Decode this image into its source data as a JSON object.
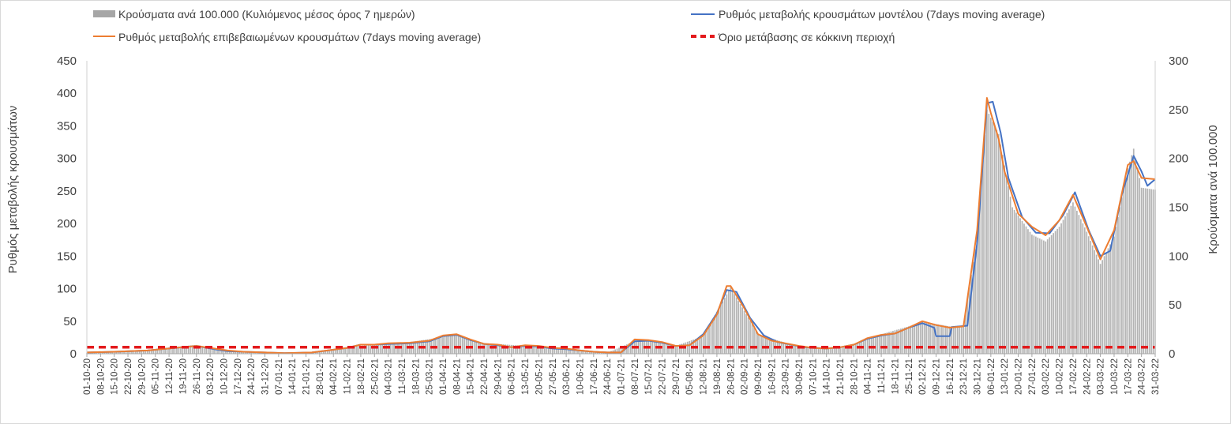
{
  "chart_data": {
    "type": "bar+line",
    "legend": {
      "placement": "top",
      "items": [
        {
          "key": "cases",
          "label": "Κρούσματα ανά 100.000 (Κυλιόμενος μέσος όρος 7 ημερών)",
          "color": "#a6a6a6",
          "style": "bar"
        },
        {
          "key": "model",
          "label": "Ρυθμός μεταβολής κρουσμάτων μοντέλου (7days moving average)",
          "color": "#4472c4",
          "style": "line"
        },
        {
          "key": "confirmed",
          "label": "Ρυθμός μεταβολής επιβεβαιωμένων κρουσμάτων (7days moving average)",
          "color": "#ed7d31",
          "style": "line"
        },
        {
          "key": "threshold",
          "label": "Όριο μετάβασης σε κόκκινη περιοχή",
          "color": "#e31a1c",
          "style": "dashed"
        }
      ]
    },
    "y_left": {
      "label": "Ρυθμός μεταβολής κρουσμάτων",
      "min": 0,
      "max": 450,
      "ticks": [
        "0",
        "50",
        "100",
        "150",
        "200",
        "250",
        "300",
        "350",
        "400",
        "450"
      ]
    },
    "y_right": {
      "label": "Κρούσματα ανά 100.000",
      "min": 0,
      "max": 300,
      "ticks": [
        "0",
        "50",
        "100",
        "150",
        "200",
        "250",
        "300"
      ]
    },
    "x_axis": {
      "start": "2020-10-01",
      "end": "2022-03-31",
      "tick_labels": [
        "01-10-20",
        "08-10-20",
        "15-10-20",
        "22-10-20",
        "29-10-20",
        "05-11-20",
        "12-11-20",
        "19-11-20",
        "26-11-20",
        "03-12-20",
        "10-12-20",
        "17-12-20",
        "24-12-20",
        "31-12-20",
        "07-01-21",
        "14-01-21",
        "21-01-21",
        "28-01-21",
        "04-02-21",
        "11-02-21",
        "18-02-21",
        "25-02-21",
        "04-03-21",
        "11-03-21",
        "18-03-21",
        "25-03-21",
        "01-04-21",
        "08-04-21",
        "15-04-21",
        "22-04-21",
        "29-04-21",
        "06-05-21",
        "13-05-21",
        "20-05-21",
        "27-05-21",
        "03-06-21",
        "10-06-21",
        "17-06-21",
        "24-06-21",
        "01-07-21",
        "08-07-21",
        "15-07-21",
        "22-07-21",
        "29-07-21",
        "05-08-21",
        "12-08-21",
        "19-08-21",
        "26-08-21",
        "02-09-21",
        "09-09-21",
        "16-09-21",
        "23-09-21",
        "30-09-21",
        "07-10-21",
        "14-10-21",
        "21-10-21",
        "28-10-21",
        "04-11-21",
        "11-11-21",
        "18-11-21",
        "25-11-21",
        "02-12-21",
        "09-12-21",
        "16-12-21",
        "23-12-21",
        "30-12-21",
        "06-01-22",
        "13-01-22",
        "20-01-22",
        "27-01-22",
        "03-02-22",
        "10-02-22",
        "17-02-22",
        "24-02-22",
        "03-03-22",
        "10-03-22",
        "17-03-22",
        "24-03-22",
        "31-03-22"
      ]
    },
    "threshold_value": 10,
    "series": {
      "confirmed": [
        [
          "2020-10-01",
          2
        ],
        [
          "2020-10-15",
          3
        ],
        [
          "2020-11-01",
          5
        ],
        [
          "2020-11-15",
          9
        ],
        [
          "2020-11-26",
          12
        ],
        [
          "2020-12-05",
          8
        ],
        [
          "2020-12-12",
          5
        ],
        [
          "2020-12-20",
          3
        ],
        [
          "2020-12-31",
          2
        ],
        [
          "2021-01-10",
          1
        ],
        [
          "2021-01-24",
          2
        ],
        [
          "2021-02-01",
          5
        ],
        [
          "2021-02-11",
          9
        ],
        [
          "2021-02-18",
          14
        ],
        [
          "2021-02-25",
          14
        ],
        [
          "2021-03-04",
          16
        ],
        [
          "2021-03-15",
          17
        ],
        [
          "2021-03-25",
          20
        ],
        [
          "2021-04-01",
          28
        ],
        [
          "2021-04-08",
          30
        ],
        [
          "2021-04-15",
          22
        ],
        [
          "2021-04-22",
          15
        ],
        [
          "2021-04-29",
          14
        ],
        [
          "2021-05-06",
          10
        ],
        [
          "2021-05-13",
          13
        ],
        [
          "2021-05-20",
          12
        ],
        [
          "2021-05-27",
          9
        ],
        [
          "2021-06-03",
          8
        ],
        [
          "2021-06-10",
          5
        ],
        [
          "2021-06-17",
          3
        ],
        [
          "2021-06-24",
          2
        ],
        [
          "2021-07-01",
          2
        ],
        [
          "2021-07-08",
          22
        ],
        [
          "2021-07-15",
          21
        ],
        [
          "2021-07-22",
          18
        ],
        [
          "2021-07-29",
          12
        ],
        [
          "2021-08-05",
          13
        ],
        [
          "2021-08-12",
          28
        ],
        [
          "2021-08-19",
          60
        ],
        [
          "2021-08-24",
          104
        ],
        [
          "2021-08-26",
          104
        ],
        [
          "2021-09-02",
          70
        ],
        [
          "2021-09-09",
          30
        ],
        [
          "2021-09-16",
          20
        ],
        [
          "2021-09-23",
          16
        ],
        [
          "2021-09-30",
          12
        ],
        [
          "2021-10-07",
          9
        ],
        [
          "2021-10-14",
          8
        ],
        [
          "2021-10-21",
          10
        ],
        [
          "2021-10-28",
          14
        ],
        [
          "2021-11-04",
          24
        ],
        [
          "2021-11-11",
          29
        ],
        [
          "2021-11-18",
          31
        ],
        [
          "2021-11-25",
          40
        ],
        [
          "2021-12-02",
          50
        ],
        [
          "2021-12-09",
          44
        ],
        [
          "2021-12-16",
          40
        ],
        [
          "2021-12-23",
          42
        ],
        [
          "2021-12-30",
          190
        ],
        [
          "2022-01-04",
          393
        ],
        [
          "2022-01-06",
          370
        ],
        [
          "2022-01-10",
          330
        ],
        [
          "2022-01-13",
          280
        ],
        [
          "2022-01-20",
          215
        ],
        [
          "2022-01-27",
          195
        ],
        [
          "2022-02-03",
          182
        ],
        [
          "2022-02-10",
          205
        ],
        [
          "2022-02-17",
          244
        ],
        [
          "2022-02-24",
          195
        ],
        [
          "2022-03-03",
          145
        ],
        [
          "2022-03-10",
          190
        ],
        [
          "2022-03-17",
          290
        ],
        [
          "2022-03-20",
          296
        ],
        [
          "2022-03-24",
          270
        ],
        [
          "2022-03-31",
          268
        ]
      ],
      "model": [
        [
          "2020-10-01",
          2
        ],
        [
          "2020-10-15",
          3
        ],
        [
          "2020-11-01",
          5
        ],
        [
          "2020-11-15",
          9
        ],
        [
          "2020-11-26",
          12
        ],
        [
          "2020-12-05",
          7
        ],
        [
          "2020-12-12",
          4
        ],
        [
          "2020-12-20",
          3
        ],
        [
          "2020-12-31",
          2
        ],
        [
          "2021-01-10",
          1
        ],
        [
          "2021-01-24",
          2
        ],
        [
          "2021-02-01",
          5
        ],
        [
          "2021-02-11",
          9
        ],
        [
          "2021-02-18",
          14
        ],
        [
          "2021-02-25",
          14
        ],
        [
          "2021-03-04",
          15
        ],
        [
          "2021-03-15",
          16
        ],
        [
          "2021-03-25",
          19
        ],
        [
          "2021-04-01",
          27
        ],
        [
          "2021-04-08",
          29
        ],
        [
          "2021-04-15",
          21
        ],
        [
          "2021-04-22",
          15
        ],
        [
          "2021-04-29",
          13
        ],
        [
          "2021-05-06",
          10
        ],
        [
          "2021-05-13",
          12
        ],
        [
          "2021-05-20",
          11
        ],
        [
          "2021-05-27",
          8
        ],
        [
          "2021-06-03",
          7
        ],
        [
          "2021-06-10",
          5
        ],
        [
          "2021-06-17",
          3
        ],
        [
          "2021-06-24",
          2
        ],
        [
          "2021-07-01",
          2
        ],
        [
          "2021-07-08",
          19
        ],
        [
          "2021-07-15",
          20
        ],
        [
          "2021-07-22",
          17
        ],
        [
          "2021-07-29",
          12
        ],
        [
          "2021-08-05",
          13
        ],
        [
          "2021-08-12",
          30
        ],
        [
          "2021-08-19",
          62
        ],
        [
          "2021-08-24",
          98
        ],
        [
          "2021-08-29",
          95
        ],
        [
          "2021-09-05",
          55
        ],
        [
          "2021-09-12",
          28
        ],
        [
          "2021-09-19",
          18
        ],
        [
          "2021-09-26",
          14
        ],
        [
          "2021-10-03",
          10
        ],
        [
          "2021-10-14",
          8
        ],
        [
          "2021-10-21",
          10
        ],
        [
          "2021-10-28",
          14
        ],
        [
          "2021-11-04",
          23
        ],
        [
          "2021-11-11",
          28
        ],
        [
          "2021-11-18",
          31
        ],
        [
          "2021-11-25",
          40
        ],
        [
          "2021-12-02",
          47
        ],
        [
          "2021-12-08",
          40
        ],
        [
          "2021-12-09",
          27
        ],
        [
          "2021-12-16",
          27
        ],
        [
          "2021-12-17",
          41
        ],
        [
          "2021-12-25",
          43
        ],
        [
          "2021-12-30",
          170
        ],
        [
          "2022-01-04",
          385
        ],
        [
          "2022-01-07",
          387
        ],
        [
          "2022-01-11",
          340
        ],
        [
          "2022-01-15",
          270
        ],
        [
          "2022-01-22",
          210
        ],
        [
          "2022-01-29",
          186
        ],
        [
          "2022-02-05",
          185
        ],
        [
          "2022-02-12",
          213
        ],
        [
          "2022-02-18",
          248
        ],
        [
          "2022-02-25",
          190
        ],
        [
          "2022-03-03",
          150
        ],
        [
          "2022-03-08",
          158
        ],
        [
          "2022-03-14",
          245
        ],
        [
          "2022-03-20",
          304
        ],
        [
          "2022-03-24",
          280
        ],
        [
          "2022-03-27",
          258
        ],
        [
          "2022-03-31",
          268
        ]
      ],
      "cases_per_100k": [
        [
          "2020-10-01",
          1
        ],
        [
          "2020-10-15",
          2
        ],
        [
          "2020-11-01",
          4
        ],
        [
          "2020-11-15",
          7
        ],
        [
          "2020-11-26",
          9
        ],
        [
          "2020-12-10",
          4
        ],
        [
          "2020-12-24",
          2
        ],
        [
          "2021-01-10",
          1
        ],
        [
          "2021-01-24",
          2
        ],
        [
          "2021-02-11",
          6
        ],
        [
          "2021-02-25",
          10
        ],
        [
          "2021-03-15",
          12
        ],
        [
          "2021-04-08",
          19
        ],
        [
          "2021-04-22",
          11
        ],
        [
          "2021-05-13",
          8
        ],
        [
          "2021-06-03",
          5
        ],
        [
          "2021-06-24",
          1
        ],
        [
          "2021-07-08",
          13
        ],
        [
          "2021-07-15",
          14
        ],
        [
          "2021-07-29",
          8
        ],
        [
          "2021-08-12",
          18
        ],
        [
          "2021-08-26",
          68
        ],
        [
          "2021-09-09",
          20
        ],
        [
          "2021-09-30",
          7
        ],
        [
          "2021-10-14",
          5
        ],
        [
          "2021-10-28",
          9
        ],
        [
          "2021-11-11",
          20
        ],
        [
          "2021-11-25",
          28
        ],
        [
          "2021-12-02",
          33
        ],
        [
          "2021-12-16",
          28
        ],
        [
          "2021-12-23",
          29
        ],
        [
          "2021-12-30",
          120
        ],
        [
          "2022-01-04",
          250
        ],
        [
          "2022-01-10",
          225
        ],
        [
          "2022-01-17",
          150
        ],
        [
          "2022-01-27",
          122
        ],
        [
          "2022-02-03",
          115
        ],
        [
          "2022-02-10",
          130
        ],
        [
          "2022-02-17",
          155
        ],
        [
          "2022-02-24",
          125
        ],
        [
          "2022-03-03",
          92
        ],
        [
          "2022-03-10",
          120
        ],
        [
          "2022-03-17",
          190
        ],
        [
          "2022-03-20",
          210
        ],
        [
          "2022-03-24",
          170
        ],
        [
          "2022-03-31",
          168
        ]
      ]
    }
  }
}
